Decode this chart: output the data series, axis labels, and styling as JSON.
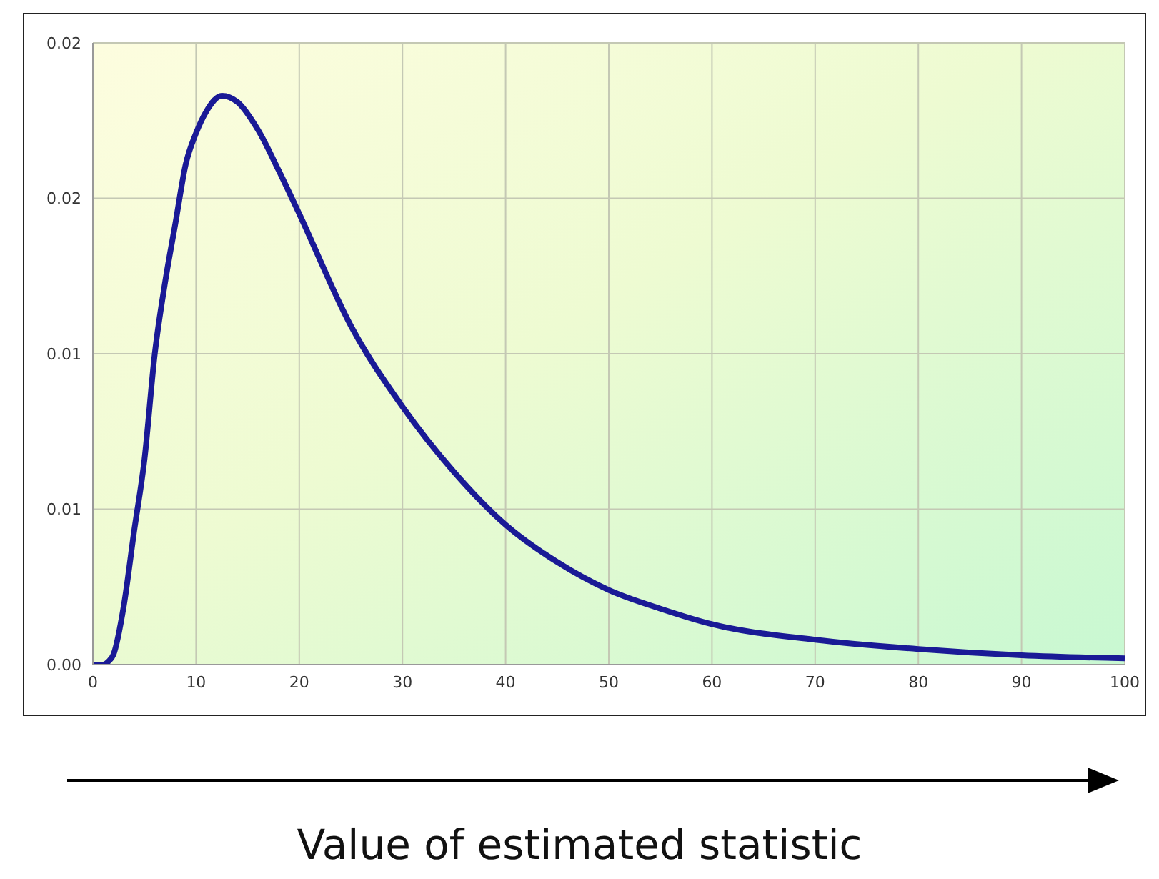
{
  "chart_data": {
    "type": "line",
    "xlabel": "Value of estimated statistic",
    "series": [
      {
        "color": "#1a1a96",
        "x": [
          0,
          1,
          1.5,
          2,
          3,
          4,
          5,
          6,
          7,
          8,
          9,
          10,
          11,
          12.5,
          14,
          16,
          18,
          20,
          25,
          30,
          35,
          40,
          45,
          50,
          55,
          60,
          70,
          80,
          90,
          100
        ],
        "values": [
          0,
          0,
          0.0001,
          0.00033,
          0.0019,
          0.0043,
          0.0066,
          0.01,
          0.0123,
          0.0142,
          0.0161,
          0.0171,
          0.0178,
          0.0183,
          0.0181,
          0.0172,
          0.0159,
          0.0145,
          0.0109,
          0.0083,
          0.0062,
          0.0045,
          0.0033,
          0.0024,
          0.0018,
          0.0013,
          0.0008,
          0.0005,
          0.0003,
          0.0002
        ]
      }
    ],
    "xlim": [
      0,
      100
    ],
    "xticks": [
      0,
      10,
      20,
      30,
      40,
      50,
      60,
      70,
      80,
      90,
      100
    ],
    "ylim": [
      0,
      0.02
    ],
    "yticks": [
      {
        "value": 0,
        "label": "0.00"
      },
      {
        "value": 0.005,
        "label": "0.01"
      },
      {
        "value": 0.01,
        "label": "0.01"
      },
      {
        "value": 0.015,
        "label": "0.02"
      },
      {
        "value": 0.02,
        "label": "0.02"
      }
    ],
    "grid": true,
    "marker": "none",
    "line_style": "solid"
  }
}
